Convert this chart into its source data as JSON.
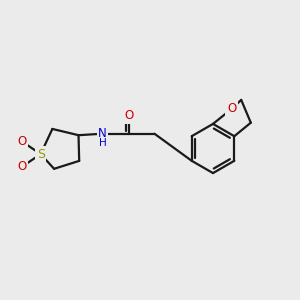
{
  "bg_color": "#ebebeb",
  "bond_color": "#1a1a1a",
  "bond_width": 1.6,
  "s_color": "#999900",
  "o_color": "#cc0000",
  "n_color": "#0000cc",
  "font_size_atom": 8.5,
  "fig_bg": "#ebebeb",
  "xlim": [
    0,
    10
  ],
  "ylim": [
    0,
    10
  ]
}
